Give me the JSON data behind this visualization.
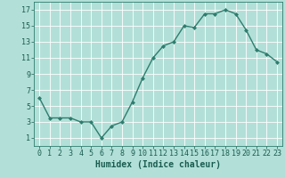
{
  "x": [
    0,
    1,
    2,
    3,
    4,
    5,
    6,
    7,
    8,
    9,
    10,
    11,
    12,
    13,
    14,
    15,
    16,
    17,
    18,
    19,
    20,
    21,
    22,
    23
  ],
  "y": [
    6,
    3.5,
    3.5,
    3.5,
    3,
    3,
    1,
    2.5,
    3,
    5.5,
    8.5,
    11,
    12.5,
    13,
    15,
    14.8,
    16.5,
    16.5,
    17,
    16.5,
    14.5,
    12,
    11.5,
    10.5
  ],
  "line_color": "#2e7d6e",
  "bg_color": "#b2e0d8",
  "grid_color": "#ffffff",
  "xlabel": "Humidex (Indice chaleur)",
  "xlim": [
    -0.5,
    23.5
  ],
  "ylim": [
    0,
    18
  ],
  "yticks": [
    1,
    3,
    5,
    7,
    9,
    11,
    13,
    15,
    17
  ],
  "xtick_labels": [
    "0",
    "1",
    "2",
    "3",
    "4",
    "5",
    "6",
    "7",
    "8",
    "9",
    "10",
    "11",
    "12",
    "13",
    "14",
    "15",
    "16",
    "17",
    "18",
    "19",
    "20",
    "21",
    "22",
    "23"
  ],
  "marker": "D",
  "markersize": 2,
  "linewidth": 1.0,
  "xlabel_fontsize": 7,
  "tick_fontsize": 6,
  "tick_color": "#1a5c50",
  "axis_color": "#2e7d6e"
}
